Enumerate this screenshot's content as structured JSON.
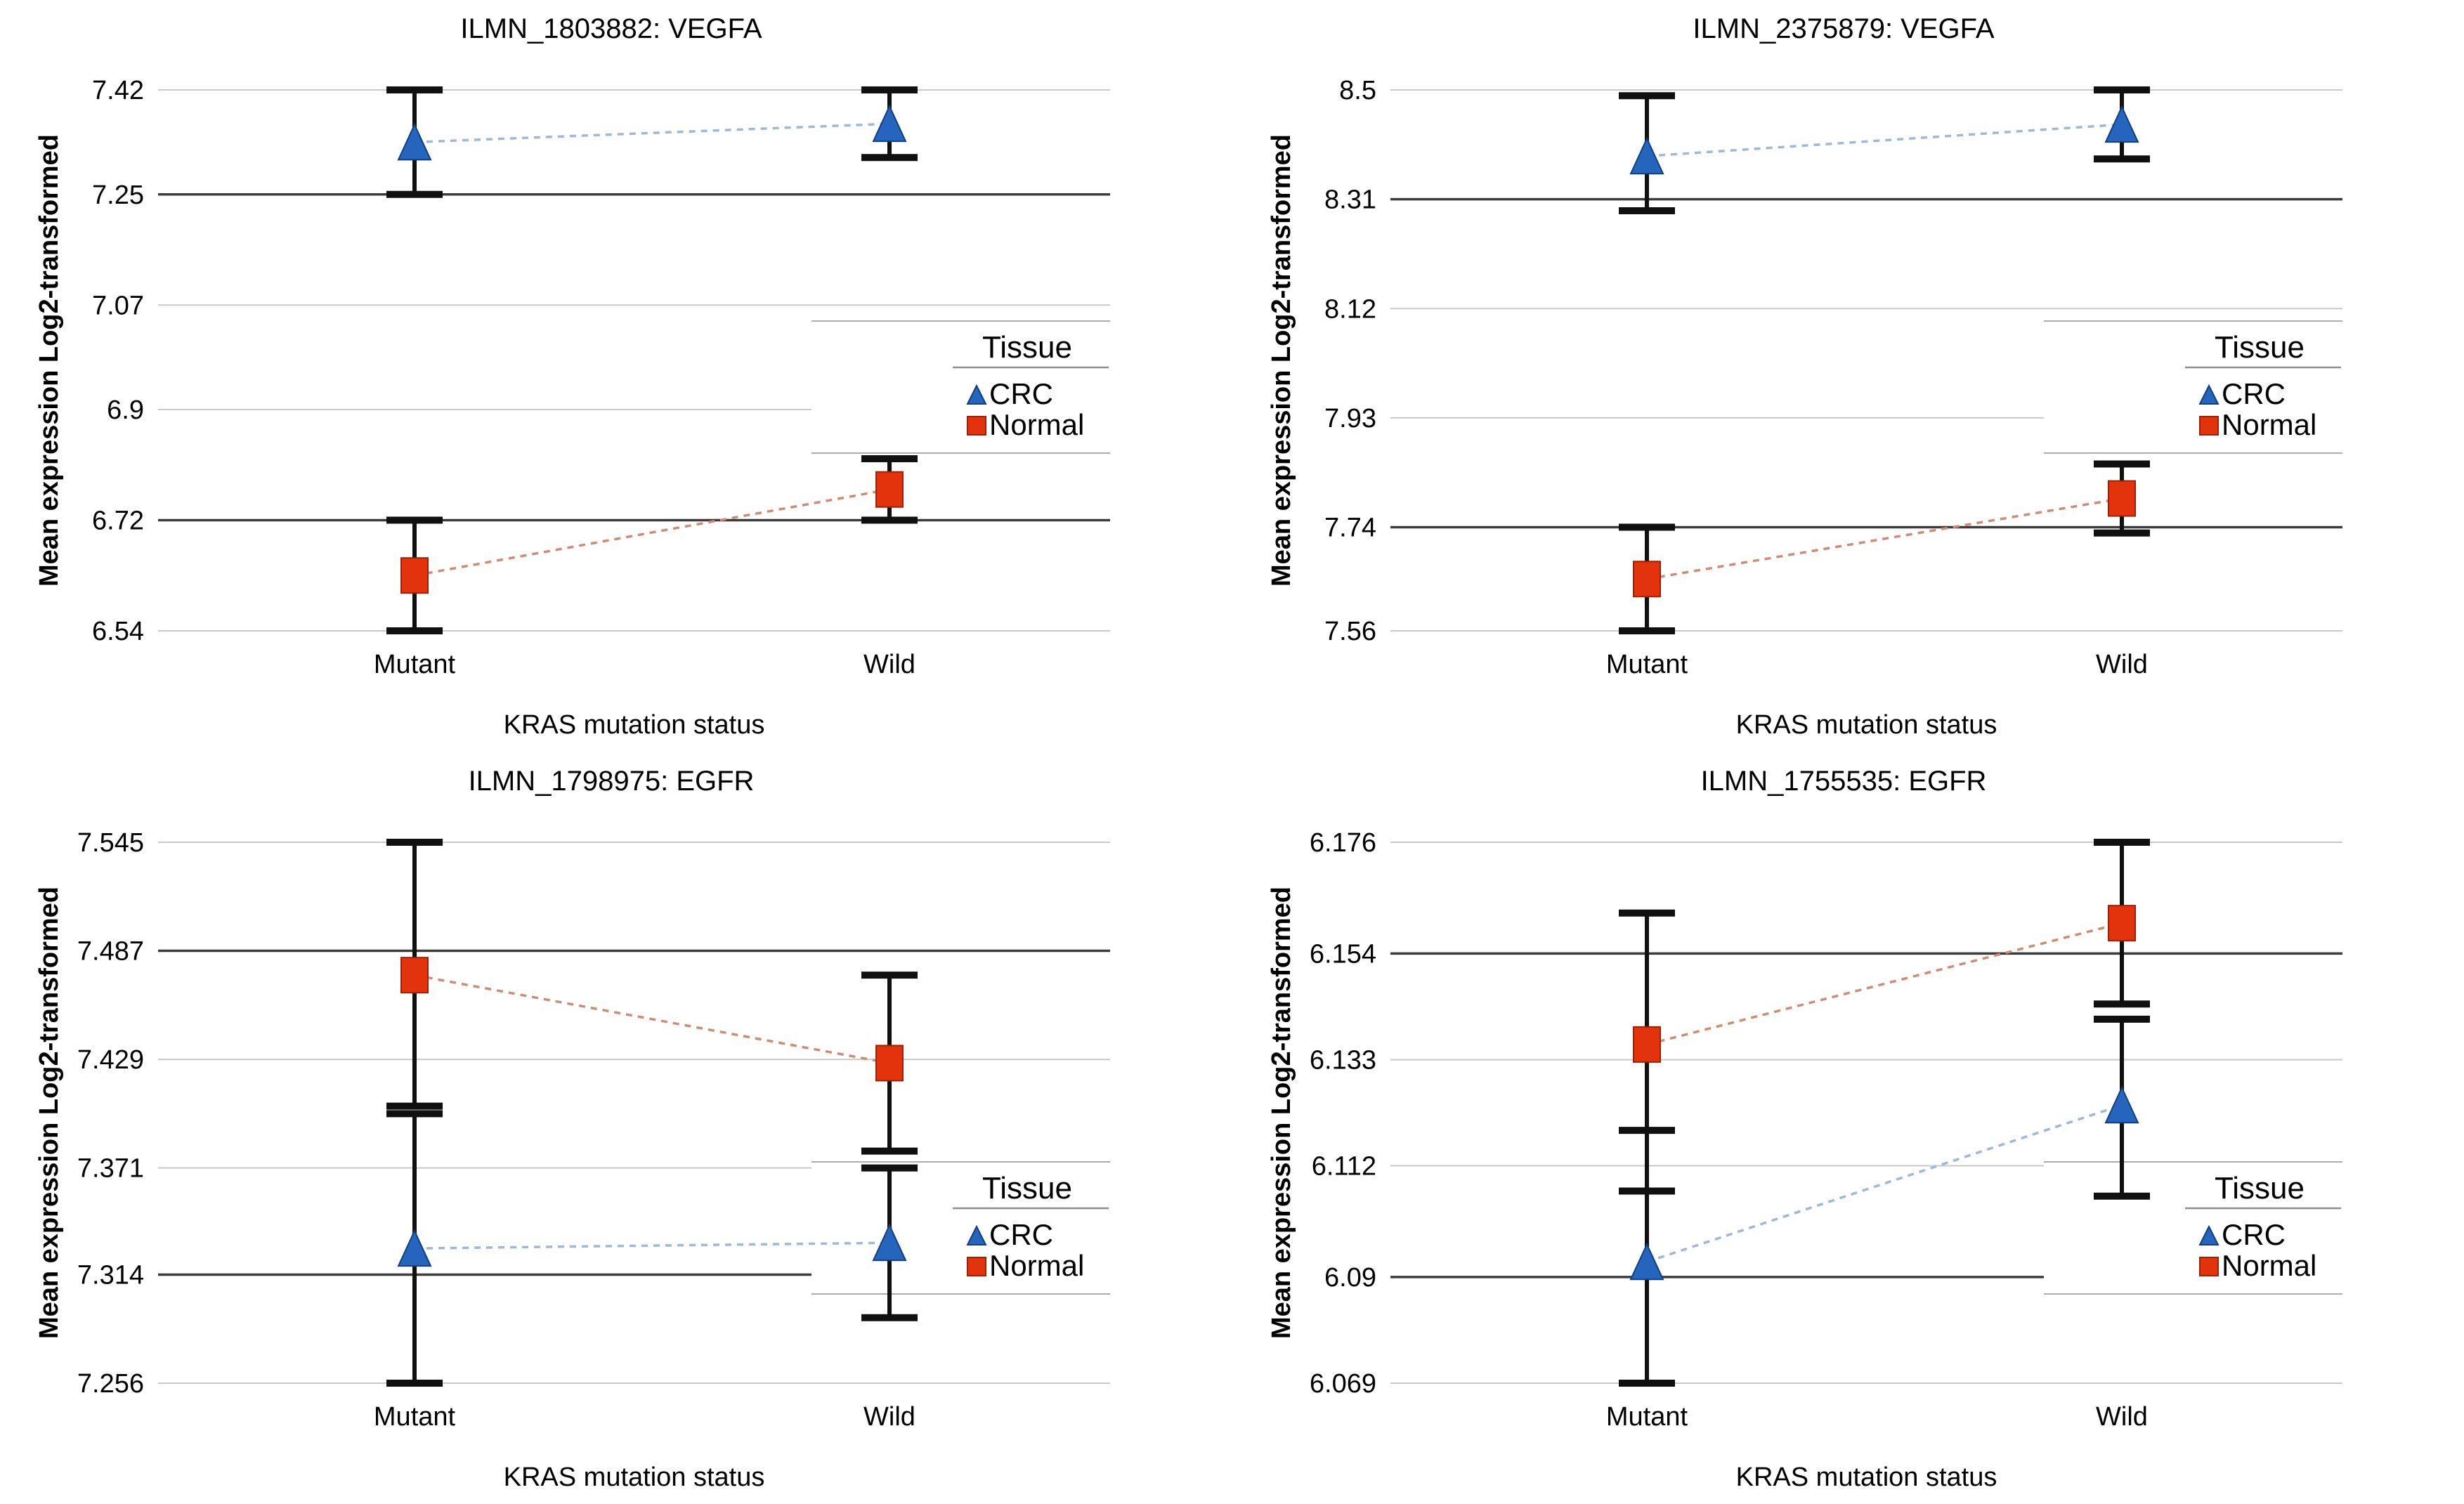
{
  "page": {
    "background": "#ffffff"
  },
  "shared": {
    "xlabel": "KRAS mutation status",
    "ylabel": "Mean expression Log2-transformed",
    "categories": [
      "Mutant",
      "Wild"
    ],
    "legend_title": "Tissue",
    "legend_entries": [
      {
        "label": "CRC",
        "marker": "triangle-icon",
        "color": "#2565BE"
      },
      {
        "label": "Normal",
        "marker": "square-icon",
        "color": "#E2330D"
      }
    ],
    "colors": {
      "crc_marker": "#2565BE",
      "crc_marker_edge": "#123F7E",
      "crc_line": "#9DB8D9",
      "normal_marker": "#E2330D",
      "normal_marker_edge": "#9C2108",
      "normal_line": "#CE8C72",
      "grid_light": "#C9C9C9",
      "grid_dark": "#3C3C3C",
      "error_bar": "#101010",
      "legend_border": "#ADADAD",
      "legend_underline": "#8F8F8F",
      "text": "#000000"
    }
  },
  "chart_data": [
    {
      "type": "line",
      "title": "ILMN_1803882: VEGFA",
      "xlabel": "KRAS mutation status",
      "ylabel": "Mean expression Log2-transformed",
      "categories": [
        "Mutant",
        "Wild"
      ],
      "ytick_labels": [
        "7.42",
        "7.25",
        "7.07",
        "6.9",
        "6.72",
        "6.54"
      ],
      "ytick_values": [
        7.42,
        7.25,
        7.07,
        6.9,
        6.72,
        6.54
      ],
      "dark_tick_indices": [
        1,
        4
      ],
      "ylim": [
        6.54,
        7.42
      ],
      "grid": true,
      "legend_position_hint": "upper-right",
      "series": [
        {
          "name": "CRC",
          "marker": "triangle",
          "values": [
            7.335,
            7.365
          ],
          "err_low": [
            7.25,
            7.31
          ],
          "err_high": [
            7.42,
            7.42
          ]
        },
        {
          "name": "Normal",
          "marker": "square",
          "values": [
            6.63,
            6.77
          ],
          "err_low": [
            6.54,
            6.72
          ],
          "err_high": [
            6.72,
            6.82
          ]
        }
      ]
    },
    {
      "type": "line",
      "title": "ILMN_2375879: VEGFA",
      "xlabel": "KRAS mutation status",
      "ylabel": "Mean expression Log2-transformed",
      "categories": [
        "Mutant",
        "Wild"
      ],
      "ytick_labels": [
        "8.5",
        "8.31",
        "8.12",
        "7.93",
        "7.74",
        "7.56"
      ],
      "ytick_values": [
        8.5,
        8.31,
        8.12,
        7.93,
        7.74,
        7.56
      ],
      "dark_tick_indices": [
        1,
        4
      ],
      "ylim": [
        7.56,
        8.5
      ],
      "grid": true,
      "legend_position_hint": "upper-right",
      "series": [
        {
          "name": "CRC",
          "marker": "triangle",
          "values": [
            8.385,
            8.44
          ],
          "err_low": [
            8.29,
            8.38
          ],
          "err_high": [
            8.49,
            8.5
          ]
        },
        {
          "name": "Normal",
          "marker": "square",
          "values": [
            7.65,
            7.79
          ],
          "err_low": [
            7.56,
            7.73
          ],
          "err_high": [
            7.74,
            7.85
          ]
        }
      ]
    },
    {
      "type": "line",
      "title": "ILMN_1798975: EGFR",
      "xlabel": "KRAS mutation status",
      "ylabel": "Mean expression Log2-transformed",
      "categories": [
        "Mutant",
        "Wild"
      ],
      "ytick_labels": [
        "7.545",
        "7.487",
        "7.429",
        "7.371",
        "7.314",
        "7.256"
      ],
      "ytick_values": [
        7.545,
        7.487,
        7.429,
        7.371,
        7.314,
        7.256
      ],
      "dark_tick_indices": [
        1,
        4
      ],
      "ylim": [
        7.256,
        7.545
      ],
      "grid": true,
      "legend_position_hint": "lower-right",
      "series": [
        {
          "name": "CRC",
          "marker": "triangle",
          "values": [
            7.328,
            7.331
          ],
          "err_low": [
            7.256,
            7.291
          ],
          "err_high": [
            7.4,
            7.371
          ]
        },
        {
          "name": "Normal",
          "marker": "square",
          "values": [
            7.474,
            7.427
          ],
          "err_low": [
            7.404,
            7.38
          ],
          "err_high": [
            7.545,
            7.474
          ]
        }
      ]
    },
    {
      "type": "line",
      "title": "ILMN_1755535: EGFR",
      "xlabel": "KRAS mutation status",
      "ylabel": "Mean expression Log2-transformed",
      "categories": [
        "Mutant",
        "Wild"
      ],
      "ytick_labels": [
        "6.176",
        "6.154",
        "6.133",
        "6.112",
        "6.09",
        "6.069"
      ],
      "ytick_values": [
        6.176,
        6.154,
        6.133,
        6.112,
        6.09,
        6.069
      ],
      "dark_tick_indices": [
        1,
        4
      ],
      "ylim": [
        6.069,
        6.176
      ],
      "grid": true,
      "legend_position_hint": "lower-right",
      "series": [
        {
          "name": "CRC",
          "marker": "triangle",
          "values": [
            6.093,
            6.124
          ],
          "err_low": [
            6.069,
            6.106
          ],
          "err_high": [
            6.119,
            6.141
          ]
        },
        {
          "name": "Normal",
          "marker": "square",
          "values": [
            6.136,
            6.16
          ],
          "err_low": [
            6.107,
            6.144
          ],
          "err_high": [
            6.162,
            6.176
          ]
        }
      ]
    }
  ]
}
